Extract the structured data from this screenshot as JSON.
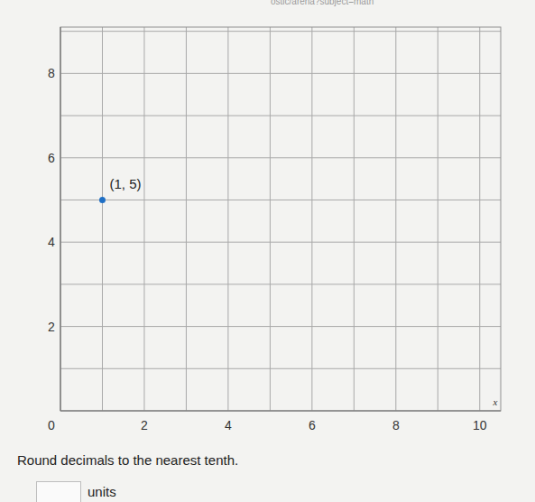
{
  "chart_data": {
    "type": "scatter",
    "x": [
      1
    ],
    "values": [
      5
    ],
    "value_labels": [
      "(1, 5)"
    ],
    "data_labels": true,
    "color": "#1f6fc5",
    "marker": "circle",
    "xlabel": "x",
    "xlim": [
      0,
      10.5
    ],
    "ylim": [
      0,
      9.1
    ],
    "xticks": [
      0,
      2,
      4,
      6,
      8,
      10
    ],
    "yticks": [
      0,
      2,
      4,
      6,
      8
    ],
    "grid": true
  },
  "header": "ostic/arena?subject=math",
  "instructions": "Round decimals to the nearest tenth.",
  "answer_unit": "units"
}
